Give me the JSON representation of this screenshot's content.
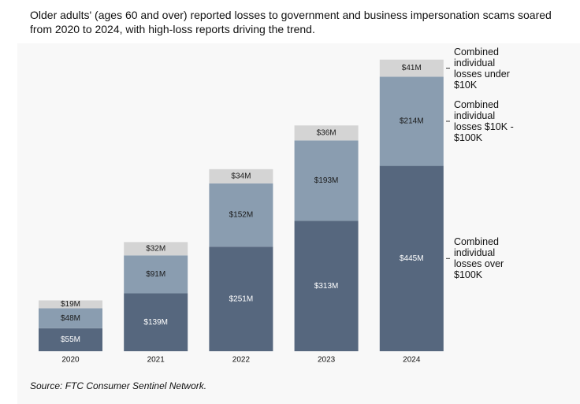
{
  "chart_data": {
    "type": "stacked-bar",
    "title": "Older adults' (ages 60 and over) reported losses to government and business impersonation scams soared from 2020 to 2024, with high-loss reports driving the trend.",
    "source": "Source: FTC Consumer Sentinel Network.",
    "categories": [
      "2020",
      "2021",
      "2022",
      "2023",
      "2024"
    ],
    "series": [
      {
        "name": "Combined individual losses over $100K",
        "color": "#56677e",
        "label_color": "#ffffff",
        "values": [
          55,
          139,
          251,
          313,
          445
        ],
        "value_labels": [
          "$55M",
          "$139M",
          "$251M",
          "$313M",
          "$445M"
        ]
      },
      {
        "name": "Combined individual losses $10K - $100K",
        "color": "#8a9db0",
        "label_color": "#1a1a1a",
        "values": [
          48,
          91,
          152,
          193,
          214
        ],
        "value_labels": [
          "$48M",
          "$91M",
          "$152M",
          "$193M",
          "$214M"
        ]
      },
      {
        "name": "Combined individual losses under $10K",
        "color": "#d4d4d4",
        "label_color": "#1a1a1a",
        "values": [
          19,
          32,
          34,
          36,
          41
        ],
        "value_labels": [
          "$19M",
          "$32M",
          "$34M",
          "$36M",
          "$41M"
        ]
      }
    ]
  }
}
